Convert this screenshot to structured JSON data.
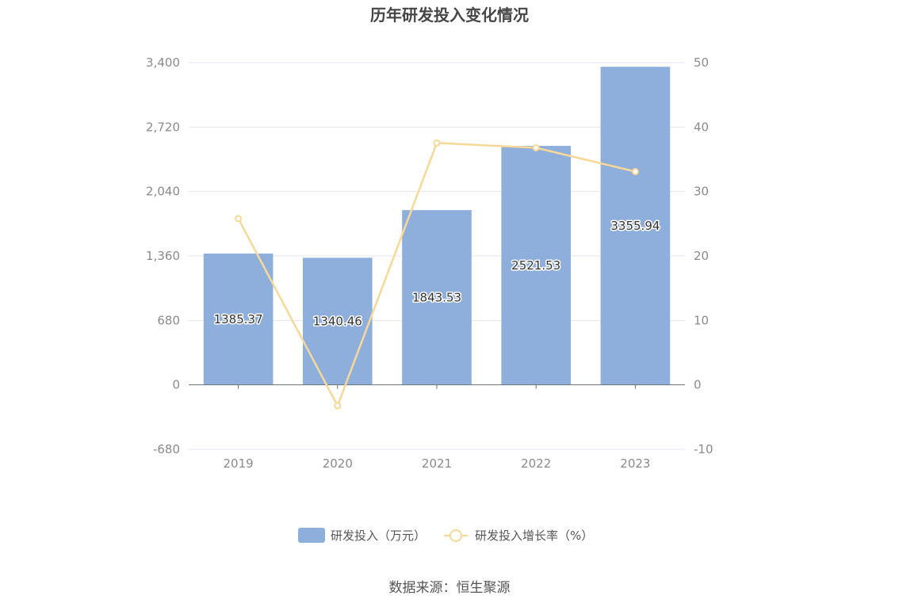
{
  "chart_data": {
    "type": "bar",
    "title": "历年研发投入变化情况",
    "categories": [
      "2019",
      "2020",
      "2021",
      "2022",
      "2023"
    ],
    "series": [
      {
        "name": "研发投入（万元）",
        "type": "bar",
        "axis": "left",
        "values": [
          1385.37,
          1340.46,
          1843.53,
          2521.53,
          3355.94
        ],
        "labels": [
          "1385.37",
          "1340.46",
          "1843.53",
          "2521.53",
          "3355.94"
        ],
        "color": "#8eaedb"
      },
      {
        "name": "研发投入增长率（%）",
        "type": "line",
        "axis": "right",
        "values": [
          25.8,
          -3.24,
          37.53,
          36.78,
          33.09
        ],
        "color": "#f8d898"
      }
    ],
    "y_left": {
      "min": -680,
      "max": 3400,
      "ticks": [
        -680,
        0,
        680,
        1360,
        2040,
        2720,
        3400
      ],
      "tick_labels": [
        "-680",
        "0",
        "680",
        "1,360",
        "2,040",
        "2,720",
        "3,400"
      ]
    },
    "y_right": {
      "min": -10,
      "max": 50,
      "ticks": [
        -10,
        0,
        10,
        20,
        30,
        40,
        50
      ],
      "tick_labels": [
        "-10",
        "0",
        "10",
        "20",
        "30",
        "40",
        "50"
      ]
    },
    "grid": true,
    "legend_position": "bottom-center"
  },
  "footer": {
    "source": "数据来源：恒生聚源"
  }
}
